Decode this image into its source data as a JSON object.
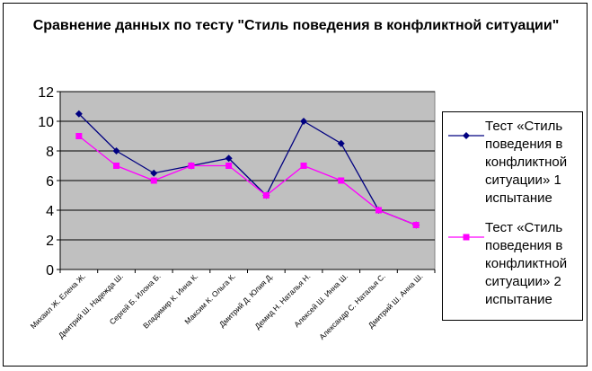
{
  "chart_data": {
    "type": "line",
    "title": "Сравнение данных по тесту \"Стиль поведения в конфликтной ситуации\"",
    "categories": [
      "Михаил Ж. Елена Ж.",
      "Дмитрий Ш. Надежда Ш.",
      "Сергей Б. Илона Б.",
      "Владимир К. Инна К.",
      "Максим К. Ольга К.",
      "Дмитрий Д. Юлия Д.",
      "Демид Н. Наталья Н.",
      "Алексей Ш. Инна Ш.",
      "Александр С. Наталья С.",
      "Дмитрий Ш. Анна Ш."
    ],
    "series": [
      {
        "name": "Тест «Стиль поведения в конфликтной ситуации» 1 испытание",
        "values": [
          10.5,
          8,
          6.5,
          7,
          7.5,
          5,
          10,
          8.5,
          4,
          3
        ],
        "color": "#000080",
        "marker": "diamond"
      },
      {
        "name": "Тест «Стиль поведения в конфликтной ситуации» 2 испытание",
        "values": [
          9,
          7,
          6,
          7,
          7,
          5,
          7,
          6,
          4,
          3
        ],
        "color": "#ff00ff",
        "marker": "square"
      }
    ],
    "ylim": [
      0,
      12
    ],
    "yticks": [
      0,
      2,
      4,
      6,
      8,
      10,
      12
    ],
    "xlabel": "",
    "ylabel": "",
    "grid": "horizontal",
    "plot_background": "#c0c0c0",
    "legend": "right"
  }
}
